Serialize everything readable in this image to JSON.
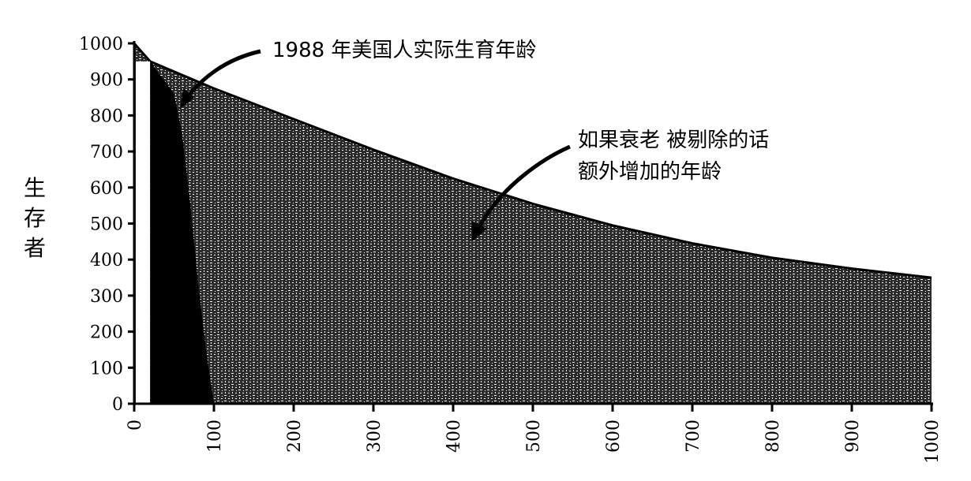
{
  "chart_data": {
    "type": "area",
    "ylabel": "生存者",
    "xlabel": "",
    "xlim": [
      0,
      1000
    ],
    "ylim": [
      0,
      1000
    ],
    "x_ticks": [
      "0",
      "100",
      "200",
      "300",
      "400",
      "500",
      "600",
      "700",
      "800",
      "900",
      "1000"
    ],
    "y_ticks": [
      "0",
      "100",
      "200",
      "300",
      "400",
      "500",
      "600",
      "700",
      "800",
      "900",
      "1000"
    ],
    "grid": false,
    "series": [
      {
        "name": "如果衰老 被剔除的话 额外增加的年龄",
        "x": [
          0,
          20,
          100,
          200,
          300,
          400,
          500,
          600,
          700,
          800,
          900,
          1000
        ],
        "values": [
          1000,
          950,
          875,
          790,
          705,
          625,
          555,
          495,
          445,
          405,
          375,
          350
        ]
      },
      {
        "name": "1988 年美国人实际生育年龄",
        "x": [
          0,
          20,
          30,
          40,
          50,
          60,
          70,
          80,
          90,
          100
        ],
        "values": [
          1000,
          950,
          920,
          890,
          860,
          750,
          560,
          340,
          150,
          0
        ]
      }
    ],
    "annotations": [
      {
        "line1": "1988 年美国人实际生育年龄"
      },
      {
        "line1": "如果衰老 被剔除的话",
        "line2": "额外增加的年龄"
      }
    ],
    "colors": {
      "envelope_fill": "#4a4a4a",
      "actual_fill": "#000000",
      "axis": "#000000"
    }
  }
}
